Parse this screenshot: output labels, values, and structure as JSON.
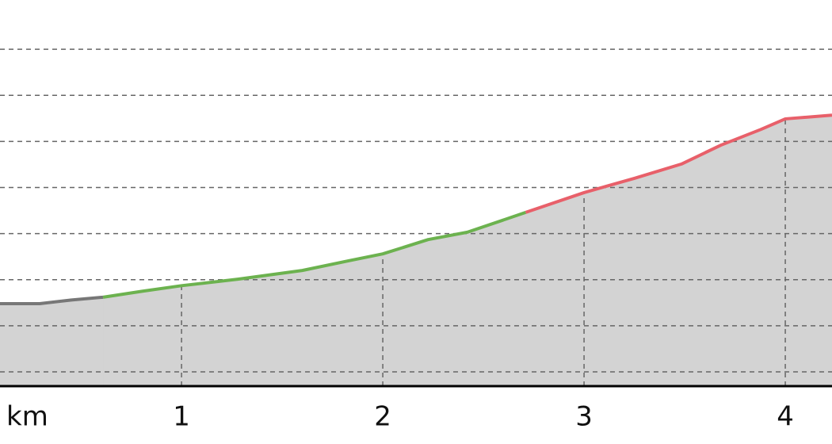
{
  "chart_data": {
    "type": "area-line",
    "xlabel": "km",
    "x": [
      0.098,
      0.295,
      0.453,
      0.61,
      0.807,
      1.0,
      1.28,
      1.6,
      1.83,
      2.0,
      2.225,
      2.42,
      2.71,
      3.0,
      3.25,
      3.484,
      3.68,
      3.878,
      4.0,
      4.232
    ],
    "series": [
      {
        "color": "#777777",
        "values": [
          2.48,
          2.48,
          2.56,
          2.62,
          null,
          null,
          null,
          null,
          null,
          null,
          null,
          null,
          null,
          null,
          null,
          null,
          null,
          null,
          null,
          null
        ]
      },
      {
        "color": "#6cb24f",
        "values": [
          null,
          null,
          null,
          2.62,
          2.75,
          2.87,
          3.01,
          3.2,
          3.41,
          3.56,
          3.87,
          4.03,
          4.46,
          null,
          null,
          null,
          null,
          null,
          null,
          null
        ]
      },
      {
        "color": "#e8606a",
        "values": [
          null,
          null,
          null,
          null,
          null,
          null,
          null,
          null,
          null,
          null,
          null,
          null,
          4.46,
          4.89,
          5.2,
          5.51,
          5.92,
          6.26,
          6.49,
          6.57
        ]
      }
    ],
    "area_color": "#d3d3d3",
    "xlim": [
      0.098,
      4.232
    ],
    "xticks": [
      1,
      2,
      3,
      4
    ],
    "ylim": [
      0.69,
      9.07
    ],
    "yticks": [
      1,
      2,
      3,
      4,
      5,
      6,
      7,
      8
    ],
    "grid": true
  }
}
